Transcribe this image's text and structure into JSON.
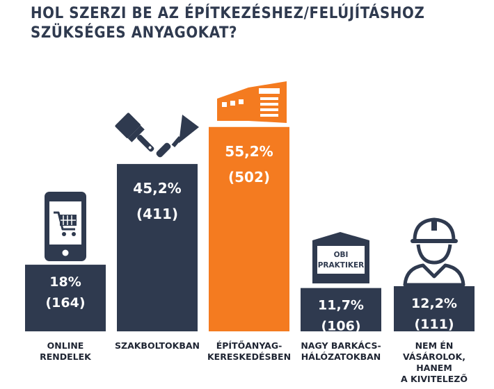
{
  "title_lines": [
    "HOL SZERZI BE AZ ÉPÍTKEZÉSHEZ/FELÚJÍTÁSHOZ",
    "SZÜKSÉGES ANYAGOKAT?"
  ],
  "icon_text": {
    "store_sign": "OBI\nPRAKTIKER"
  },
  "colors": {
    "navy": "#2f3a4f",
    "orange": "#f47b20",
    "text": "#1f2533"
  },
  "icons": [
    "shopping-cart-phone-icon",
    "paintbrush-trowel-icon",
    "building-materials-store-icon",
    "diy-store-icon",
    "construction-worker-icon"
  ],
  "chart_data": {
    "type": "bar",
    "title": "HOL SZERZI BE AZ ÉPÍTKEZÉSHEZ/FELÚJÍTÁSHOZ SZÜKSÉGES ANYAGOKAT?",
    "categories": [
      "ONLINE\nRENDELEK",
      "SZAKBOLTOKBAN",
      "ÉPÍTŐANYAG-\nKERESKEDÉSBEN",
      "NAGY BARKÁCS-\nHÁLÓZATOKBAN",
      "NEM ÉN\nVÁSÁROLOK,\nHANEM\nA KIVITELEZŐ"
    ],
    "values": [
      18,
      45.2,
      55.2,
      11.7,
      12.2
    ],
    "counts": [
      164,
      411,
      502,
      106,
      111
    ],
    "value_labels": [
      "18%",
      "45,2%",
      "55,2%",
      "11,7%",
      "12,2%"
    ],
    "count_labels": [
      "(164)",
      "(411)",
      "(502)",
      "(106)",
      "(111)"
    ],
    "highlight_index": 2,
    "ylim": [
      0,
      60
    ],
    "grid": false
  }
}
